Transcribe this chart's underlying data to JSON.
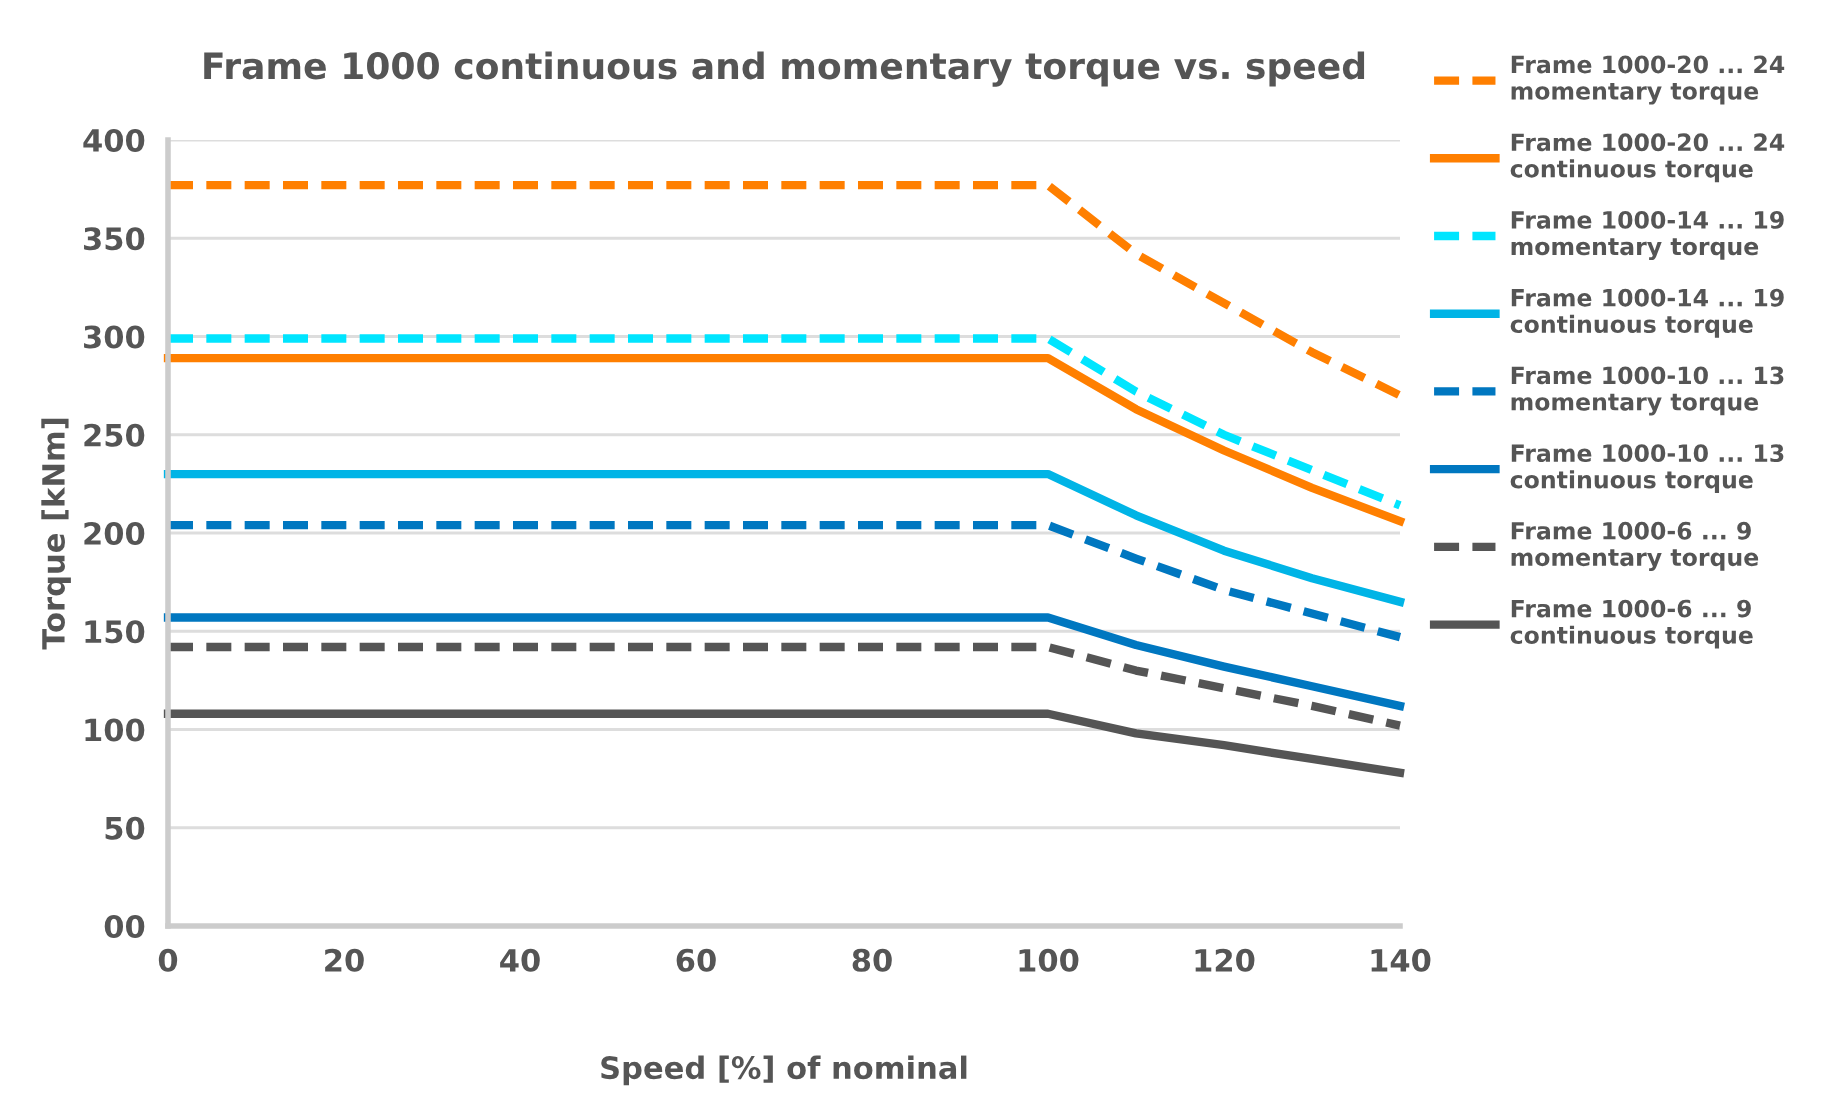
{
  "chart_data": {
    "type": "line",
    "title": "Frame 1000 continuous and momentary torque vs. speed",
    "xlabel": "Speed [%] of nominal",
    "ylabel": "Torque [kNm]",
    "x": [
      0,
      100,
      110,
      120,
      130,
      140
    ],
    "xlim": [
      0,
      140
    ],
    "xticks": [
      0,
      20,
      40,
      60,
      80,
      100,
      120,
      140
    ],
    "ylim": [
      0,
      400
    ],
    "yticks": [
      {
        "value": 0,
        "label": "00"
      },
      50,
      100,
      150,
      200,
      250,
      300,
      350,
      400
    ],
    "grid": "y",
    "legend": "right",
    "marker": "none",
    "series": [
      {
        "name": "Frame 1000-20 ... 24\nmomentary torque",
        "color": "#ff7f00",
        "line_style": "dashed",
        "values": [
          377,
          377,
          342,
          317,
          292,
          270
        ]
      },
      {
        "name": "Frame 1000-20 ... 24\ncontinuous torque",
        "color": "#ff7f00",
        "line_style": "solid",
        "values": [
          289,
          289,
          263,
          242,
          223,
          206
        ]
      },
      {
        "name": "Frame 1000-14 ... 19\nmomentary torque",
        "color": "#00e5ff",
        "line_style": "dashed",
        "values": [
          299,
          299,
          272,
          250,
          232,
          214
        ]
      },
      {
        "name": "Frame 1000-14 ... 19\ncontinuous torque",
        "color": "#00b4e6",
        "line_style": "solid",
        "values": [
          230,
          230,
          209,
          191,
          177,
          165
        ]
      },
      {
        "name": "Frame 1000-10 ... 13\nmomentary torque",
        "color": "#0077c0",
        "line_style": "dashed",
        "values": [
          204,
          204,
          187,
          171,
          159,
          147
        ]
      },
      {
        "name": "Frame 1000-10 ... 13\ncontinuous torque",
        "color": "#0077c0",
        "line_style": "solid",
        "values": [
          157,
          157,
          143,
          132,
          122,
          112
        ]
      },
      {
        "name": "Frame 1000-6 ... 9\nmomentary torque",
        "color": "#555555",
        "line_style": "dashed",
        "values": [
          142,
          142,
          130,
          121,
          112,
          102
        ]
      },
      {
        "name": "Frame 1000-6 ... 9\ncontinuous torque",
        "color": "#555555",
        "line_style": "solid",
        "values": [
          108,
          108,
          98,
          92,
          85,
          78
        ]
      }
    ]
  }
}
